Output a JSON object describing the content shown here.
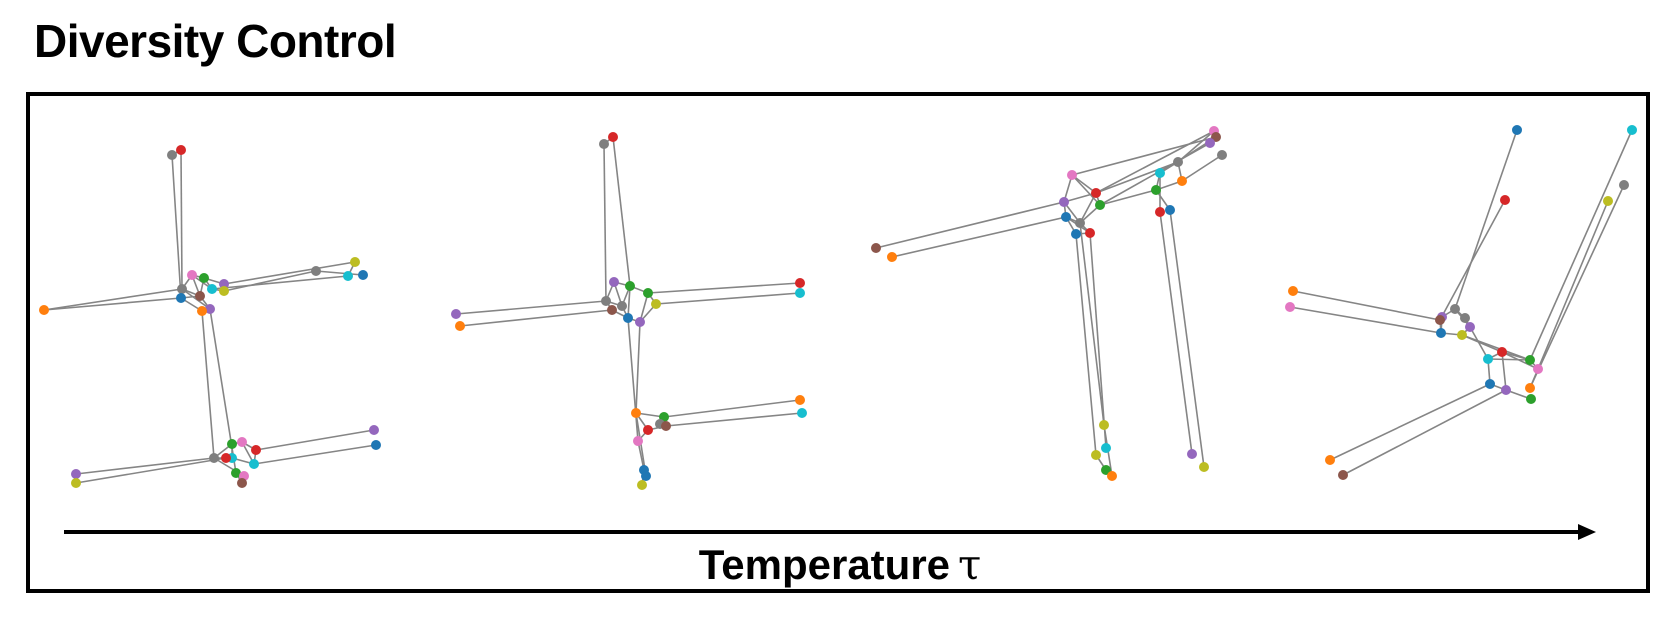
{
  "title": "Diversity Control",
  "axis": {
    "label": "Temperature",
    "symbol": "τ"
  },
  "colors": {
    "edge": "#858585",
    "arrow": "#000000",
    "frame": "#000000"
  },
  "node_palette": {
    "red": "#d62728",
    "gray": "#7f7f7f",
    "orange": "#ff7f0e",
    "olive": "#bcbd22",
    "cyan": "#17becf",
    "blue": "#1f77b4",
    "purple": "#9467bd",
    "pink": "#e377c2",
    "green": "#2ca02c",
    "brown": "#8c564b"
  },
  "panels": [
    {
      "id": "low-temperature"
    },
    {
      "id": "medium-low-temperature"
    },
    {
      "id": "medium-high-temperature"
    },
    {
      "id": "high-temperature"
    }
  ]
}
